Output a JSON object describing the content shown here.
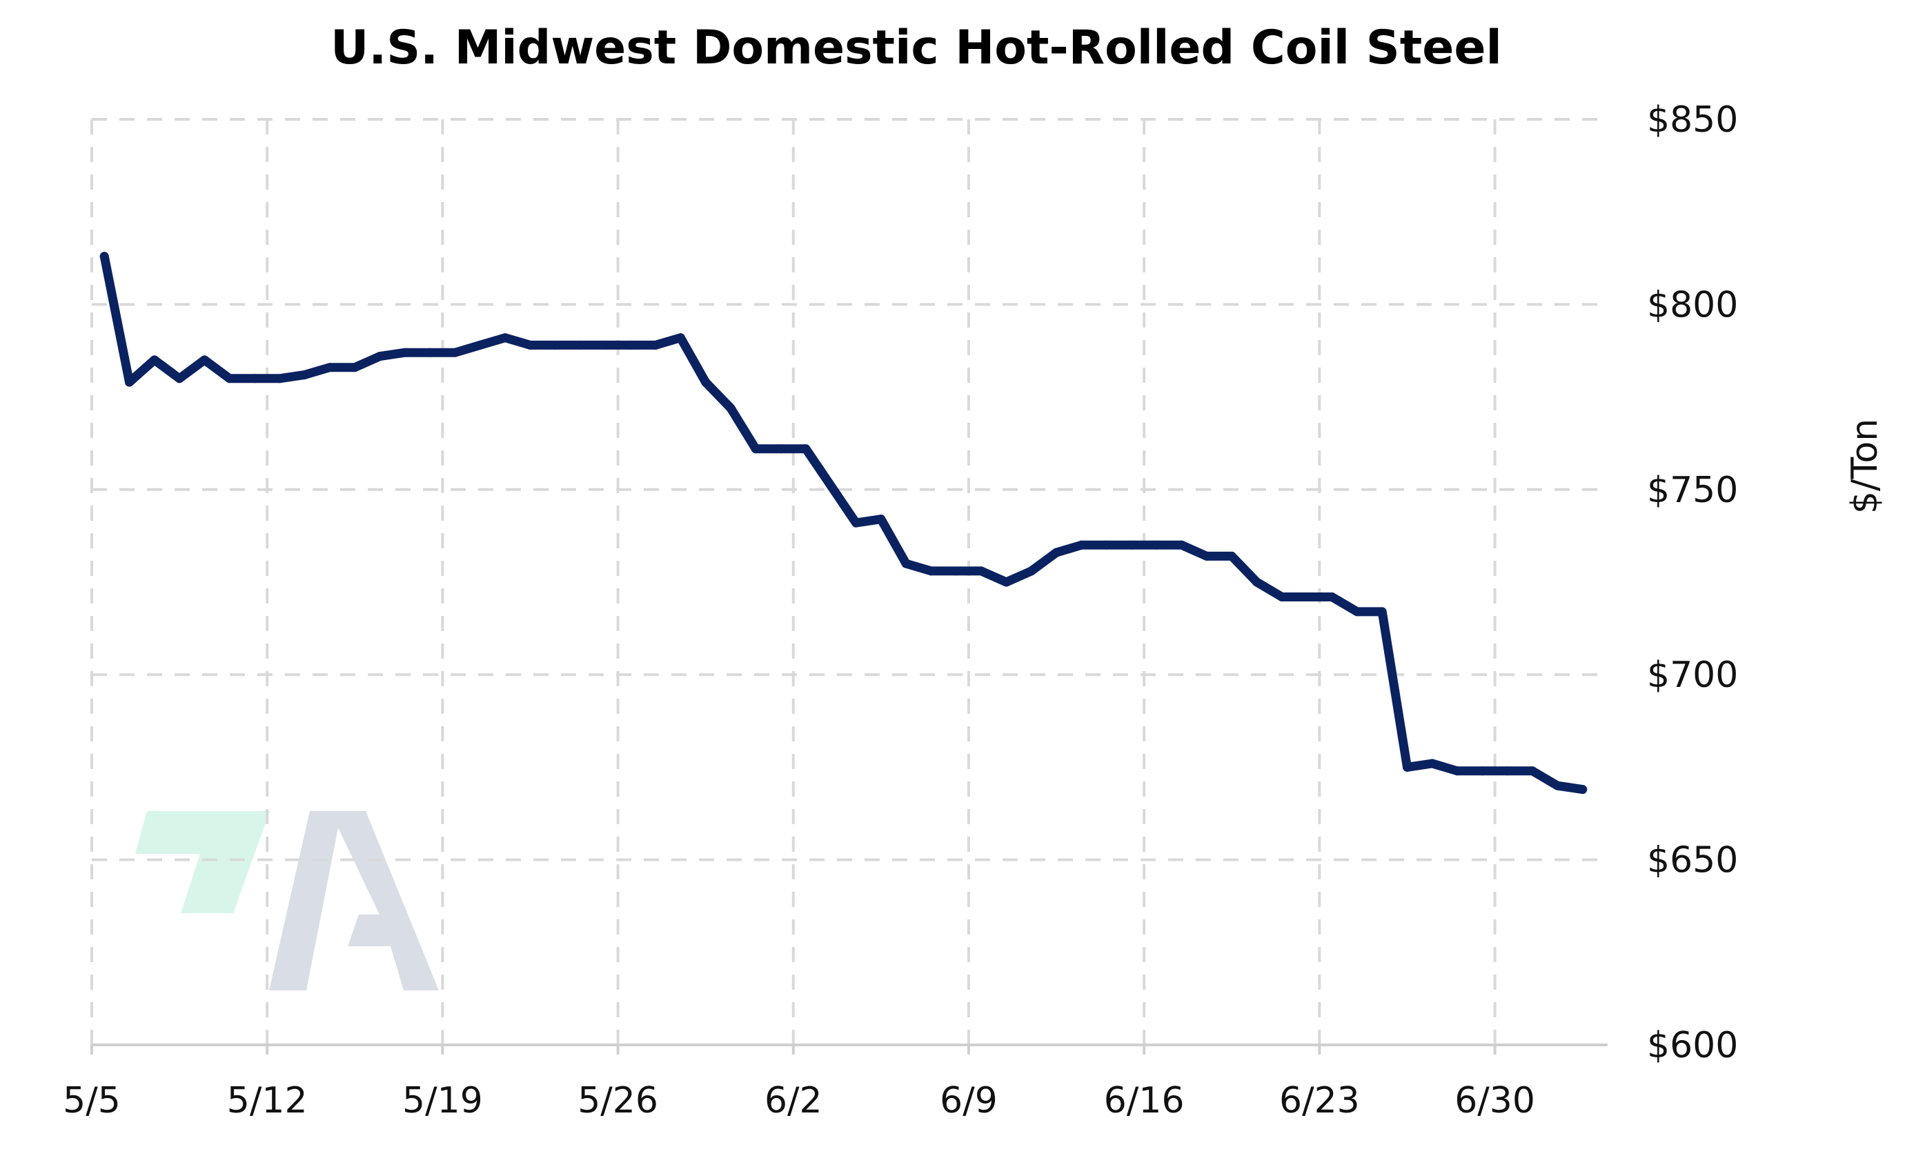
{
  "chart_data": {
    "type": "line",
    "title": "U.S. Midwest Domestic Hot-Rolled Coil Steel",
    "xlabel": "",
    "ylabel": "$/Ton",
    "xlim": [
      0,
      60.5
    ],
    "ylim": [
      600,
      850
    ],
    "x_ticks": [
      {
        "x": 0,
        "label": "5/5"
      },
      {
        "x": 7,
        "label": "5/12"
      },
      {
        "x": 14,
        "label": "5/19"
      },
      {
        "x": 21,
        "label": "5/26"
      },
      {
        "x": 28,
        "label": "6/2"
      },
      {
        "x": 35,
        "label": "6/9"
      },
      {
        "x": 42,
        "label": "6/16"
      },
      {
        "x": 49,
        "label": "6/23"
      },
      {
        "x": 56,
        "label": "6/30"
      }
    ],
    "y_ticks": [
      {
        "y": 600,
        "label": "$600"
      },
      {
        "y": 650,
        "label": "$650"
      },
      {
        "y": 700,
        "label": "$700"
      },
      {
        "y": 750,
        "label": "$750"
      },
      {
        "y": 800,
        "label": "$800"
      },
      {
        "y": 850,
        "label": "$850"
      }
    ],
    "grid": true,
    "y_axis_position": "right",
    "series": [
      {
        "color": "#0b2260",
        "x": [
          0.5,
          1.5,
          2.5,
          3.5,
          4.5,
          5.5,
          6.5,
          7.5,
          8.5,
          9.5,
          10.5,
          11.5,
          12.5,
          13.5,
          14.5,
          15.5,
          16.5,
          17.5,
          18.5,
          19.5,
          20.5,
          21.5,
          22.5,
          23.5,
          24.5,
          25.5,
          26.5,
          27.5,
          28.5,
          29.5,
          30.5,
          31.5,
          32.5,
          33.5,
          34.5,
          35.5,
          36.5,
          37.5,
          38.5,
          39.5,
          40.5,
          41.5,
          42.5,
          43.5,
          44.5,
          45.5,
          46.5,
          47.5,
          48.5,
          49.5,
          50.5,
          51.5,
          52.5,
          53.5,
          54.5,
          55.5,
          56.5,
          57.5,
          58.5,
          59.5
        ],
        "y": [
          813,
          779,
          785,
          780,
          785,
          780,
          780,
          780,
          781,
          783,
          783,
          786,
          787,
          787,
          787,
          789,
          791,
          789,
          789,
          789,
          789,
          789,
          789,
          791,
          779,
          772,
          761,
          761,
          761,
          751,
          741,
          742,
          730,
          728,
          728,
          728,
          725,
          728,
          733,
          735,
          735,
          735,
          735,
          735,
          732,
          732,
          725,
          721,
          721,
          721,
          717,
          717,
          675,
          676,
          674,
          674,
          674,
          674,
          670,
          669
        ]
      }
    ]
  },
  "watermark": {
    "colors": {
      "accent": "#d8f5ea",
      "letter": "#d9dde5"
    }
  }
}
